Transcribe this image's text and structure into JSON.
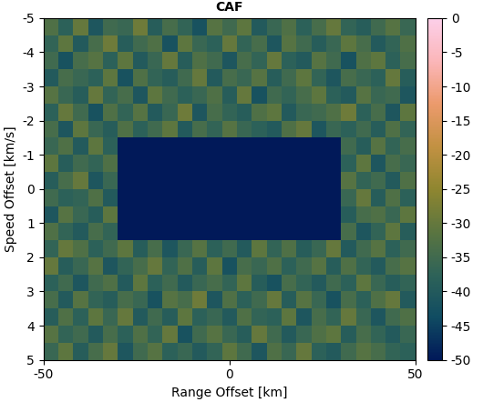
{
  "chart_data": {
    "type": "heatmap",
    "title": "CAF",
    "x_label": "Range Offset [km]",
    "y_label": "Speed Offset [km/s]",
    "x": [
      -48,
      -44,
      -40,
      -36,
      -32,
      -28,
      -24,
      -20,
      -16,
      -12,
      -8,
      -4,
      0,
      4,
      8,
      12,
      16,
      20,
      24,
      28,
      32,
      36,
      40,
      44,
      48
    ],
    "y": [
      -4.75,
      -4.25,
      -3.75,
      -3.25,
      -2.75,
      -2.25,
      -1.75,
      -1.25,
      -0.75,
      -0.25,
      0.25,
      0.75,
      1.25,
      1.75,
      2.25,
      2.75,
      3.25,
      3.75,
      4.25,
      4.75
    ],
    "cells": [
      [
        -33,
        -38,
        -30,
        -41,
        -35,
        -36,
        -29,
        -39,
        -34,
        -37,
        -42,
        -32,
        -35,
        -31,
        -40,
        -36,
        -33,
        -38,
        -34,
        -30,
        -37,
        -39,
        -35,
        -32,
        -36
      ],
      [
        -37,
        -31,
        -40,
        -34,
        -29,
        -39,
        -35,
        -33,
        -42,
        -31,
        -36,
        -38,
        -30,
        -37,
        -34,
        -41,
        -32,
        -35,
        -39,
        -36,
        -31,
        -34,
        -40,
        -37,
        -33
      ],
      [
        -35,
        -42,
        -34,
        -32,
        -38,
        -31,
        -40,
        -36,
        -30,
        -39,
        -33,
        -35,
        -41,
        -34,
        -37,
        -30,
        -38,
        -40,
        -32,
        -35,
        -42,
        -33,
        -31,
        -38,
        -34
      ],
      [
        -40,
        -34,
        -36,
        -38,
        -31,
        -42,
        -33,
        -37,
        -39,
        -35,
        -30,
        -40,
        -34,
        -36,
        -32,
        -39,
        -35,
        -31,
        -37,
        -41,
        -34,
        -36,
        -38,
        -30,
        -39
      ],
      [
        -32,
        -36,
        -39,
        -30,
        -37,
        -34,
        -41,
        -31,
        -35,
        -38,
        -36,
        -33,
        -39,
        -30,
        -42,
        -35,
        -37,
        -34,
        -31,
        -38,
        -40,
        -32,
        -36,
        -35,
        -41
      ],
      [
        -38,
        -30,
        -35,
        -42,
        -33,
        -37,
        -32,
        -40,
        -36,
        -29,
        -41,
        -34,
        -37,
        -39,
        -33,
        -31,
        -40,
        -36,
        -35,
        -33,
        -29,
        -38,
        -34,
        -41,
        -31
      ],
      [
        -34,
        -41,
        -31,
        -36,
        -39,
        -33,
        -38,
        -35,
        -31,
        -40,
        -34,
        -37,
        -32,
        -36,
        -38,
        -40,
        -33,
        -30,
        -41,
        -36,
        -38,
        -35,
        -39,
        -33,
        -37
      ],
      [
        -36,
        -33,
        -40,
        -31,
        -38,
        -50,
        -50,
        -50,
        -50,
        -50,
        -50,
        -50,
        -50,
        -50,
        -50,
        -50,
        -50,
        -50,
        -50,
        -50,
        -35,
        -39,
        -32,
        -37,
        -34
      ],
      [
        -31,
        -39,
        -35,
        -37,
        -33,
        -50,
        -50,
        -50,
        -50,
        -50,
        -50,
        -50,
        -50,
        -50,
        -50,
        -50,
        -50,
        -50,
        -50,
        -50,
        -38,
        -31,
        -41,
        -34,
        -36
      ],
      [
        -39,
        -34,
        -30,
        -41,
        -36,
        -50,
        -50,
        -50,
        -50,
        -50,
        -50,
        -50,
        -50,
        -50,
        -50,
        -50,
        -50,
        -50,
        -50,
        -50,
        -32,
        -37,
        -35,
        -40,
        -33
      ],
      [
        -35,
        -38,
        -37,
        -33,
        -40,
        -50,
        -50,
        -50,
        -50,
        -50,
        -50,
        -50,
        -50,
        -50,
        -50,
        -50,
        -50,
        -50,
        -50,
        -50,
        -36,
        -30,
        -39,
        -33,
        -38
      ],
      [
        -41,
        -32,
        -36,
        -39,
        -31,
        -50,
        -50,
        -50,
        -50,
        -50,
        -50,
        -50,
        -50,
        -50,
        -50,
        -50,
        -50,
        -50,
        -50,
        -50,
        -39,
        -34,
        -33,
        -36,
        -31
      ],
      [
        -33,
        -37,
        -40,
        -34,
        -37,
        -50,
        -50,
        -50,
        -50,
        -50,
        -50,
        -50,
        -50,
        -50,
        -50,
        -50,
        -50,
        -50,
        -50,
        -50,
        -34,
        -41,
        -37,
        -31,
        -39
      ],
      [
        -37,
        -30,
        -33,
        -38,
        -35,
        -31,
        -39,
        -34,
        -41,
        -36,
        -32,
        -38,
        -35,
        -40,
        -31,
        -37,
        -33,
        -39,
        -36,
        -30,
        -40,
        -35,
        -32,
        -38,
        -35
      ],
      [
        -30,
        -39,
        -36,
        -32,
        -41,
        -37,
        -34,
        -30,
        -37,
        -33,
        -39,
        -31,
        -42,
        -34,
        -36,
        -33,
        -38,
        -35,
        -32,
        -39,
        -33,
        -37,
        -40,
        -34,
        -32
      ],
      [
        -38,
        -35,
        -41,
        -35,
        -33,
        -40,
        -31,
        -38,
        -35,
        -40,
        -36,
        -34,
        -37,
        -31,
        -39,
        -42,
        -34,
        -37,
        -40,
        -35,
        -38,
        -31,
        -36,
        -39,
        -37
      ],
      [
        -34,
        -40,
        -32,
        -37,
        -39,
        -34,
        -36,
        -42,
        -32,
        -34,
        -29,
        -41,
        -33,
        -38,
        -35,
        -30,
        -39,
        -32,
        -36,
        -42,
        -34,
        -38,
        -33,
        -30,
        -40
      ],
      [
        -39,
        -33,
        -38,
        -31,
        -36,
        -30,
        -40,
        -35,
        -39,
        -31,
        -38,
        -36,
        -40,
        -33,
        -37,
        -38,
        -31,
        -41,
        -34,
        -37,
        -30,
        -36,
        -41,
        -35,
        -33
      ],
      [
        -32,
        -37,
        -35,
        -40,
        -34,
        -38,
        -33,
        -37,
        -30,
        -42,
        -35,
        -32,
        -36,
        -39,
        -30,
        -35,
        -40,
        -36,
        -33,
        -31,
        -39,
        -34,
        -37,
        -40,
        -36
      ],
      [
        -36,
        -31,
        -39,
        -34,
        -30,
        -41,
        -35,
        -32,
        -38,
        -36,
        -40,
        -37,
        -31,
        -35,
        -41,
        -33,
        -36,
        -30,
        -38,
        -40,
        -35,
        -32,
        -34,
        -37,
        -38
      ]
    ],
    "xlim": [
      -50,
      50
    ],
    "xticks": [
      -50,
      0,
      50
    ],
    "ylim": [
      5,
      -5
    ],
    "yticks": [
      -5,
      -4,
      -3,
      -2,
      -1,
      0,
      1,
      2,
      3,
      4,
      5
    ],
    "clim": [
      -50,
      0
    ],
    "cticks": [
      0,
      -5,
      -10,
      -15,
      -20,
      -25,
      -30,
      -35,
      -40,
      -45,
      -50
    ]
  }
}
